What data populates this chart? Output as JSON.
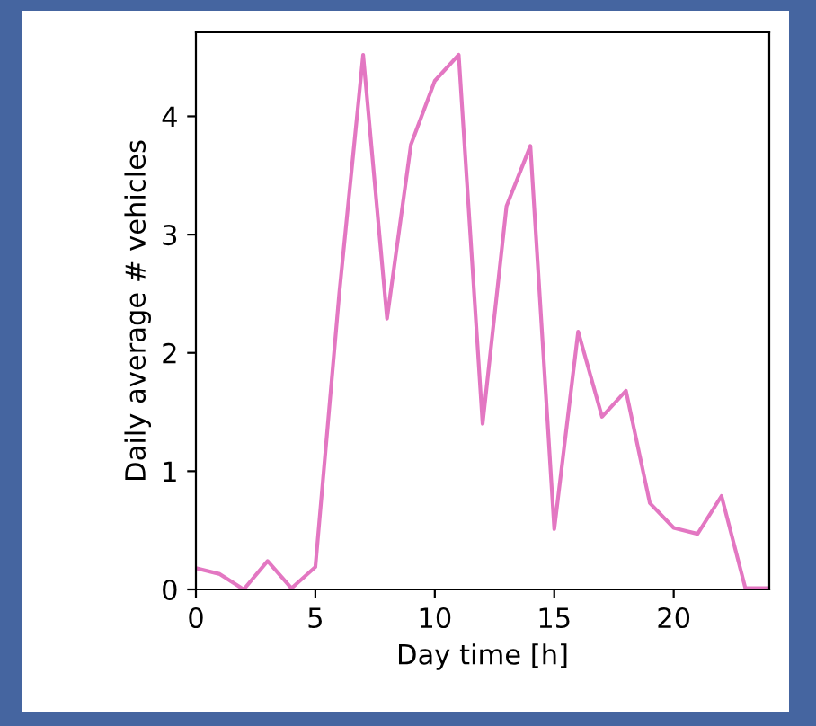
{
  "chart_data": {
    "type": "line",
    "xlabel": "Day time [h]",
    "ylabel": "Daily average # vehicles",
    "x": [
      0,
      1,
      2,
      3,
      4,
      5,
      6,
      7,
      8,
      9,
      10,
      11,
      12,
      13,
      14,
      15,
      16,
      17,
      18,
      19,
      20,
      21,
      22,
      23,
      24
    ],
    "series": [
      {
        "color": "#e377c2",
        "values": [
          0.18,
          0.13,
          0,
          0.24,
          0.01,
          0.19,
          2.5,
          4.52,
          2.29,
          3.76,
          4.3,
          4.52,
          1.4,
          3.24,
          3.75,
          0.51,
          2.18,
          1.46,
          1.68,
          0.73,
          0.52,
          0.47,
          0.79,
          0.01,
          0.01
        ]
      }
    ],
    "xlim": [
      0,
      24
    ],
    "ylim": [
      0,
      4.71
    ],
    "xticks": [
      0,
      5,
      10,
      15,
      20
    ],
    "yticks": [
      0,
      1,
      2,
      3,
      4
    ],
    "grid": false,
    "legend": false,
    "marker": "none",
    "line_style": "solid"
  }
}
